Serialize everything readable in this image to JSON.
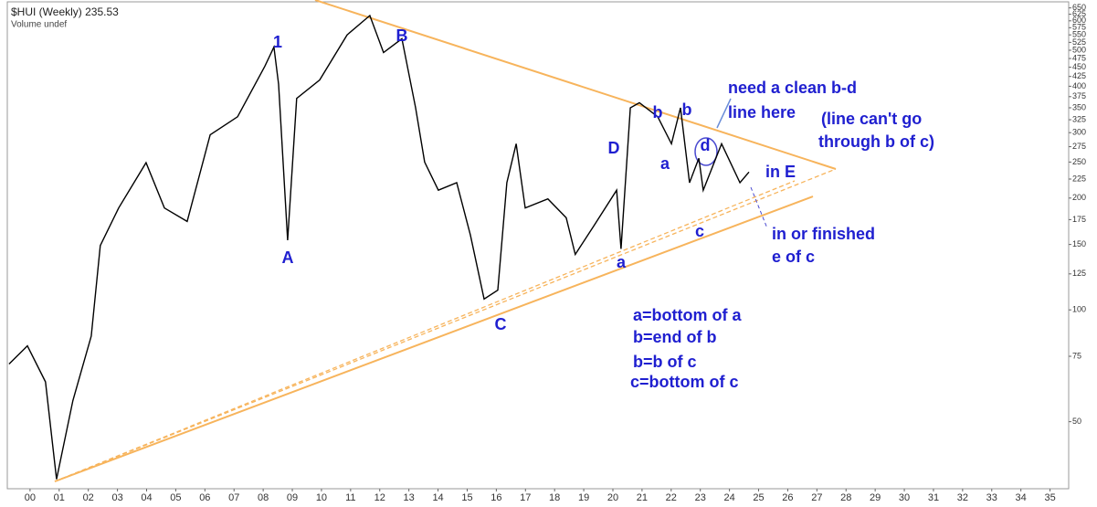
{
  "chart_data": {
    "type": "line",
    "title": "$HUI (Weekly) 235.53",
    "subtitle": "Volume undef",
    "log_y": true,
    "grid": false,
    "series": [
      {
        "name": "$HUI",
        "color": "#000000",
        "x": [
          1999.28,
          1999.91,
          2000.53,
          2000.91,
          2001.47,
          2002.1,
          2002.41,
          2003.04,
          2003.98,
          2004.61,
          2005.39,
          2006.18,
          2007.12,
          2008.06,
          2008.37,
          2008.53,
          2008.84,
          2009.15,
          2009.94,
          2010.88,
          2011.66,
          2012.13,
          2012.76,
          2013.23,
          2013.54,
          2014.01,
          2014.64,
          2015.11,
          2015.58,
          2016.05,
          2016.36,
          2016.68,
          2016.99,
          2017.77,
          2018.4,
          2018.71,
          2019.34,
          2020.13,
          2020.28,
          2020.6,
          2020.91,
          2021.54,
          2022.01,
          2022.32,
          2022.63,
          2022.95,
          2023.1,
          2023.73,
          2024.36,
          2024.67
        ],
        "values": [
          71.5,
          80,
          64,
          35,
          57,
          85,
          149,
          188,
          249,
          188,
          173,
          296,
          331,
          453,
          510,
          405,
          154,
          371,
          416,
          550,
          620,
          493,
          537,
          350,
          250,
          210,
          220,
          159,
          107,
          113,
          220,
          280,
          188,
          199,
          177,
          141,
          168,
          210,
          146,
          350,
          361,
          331,
          280,
          350,
          220,
          256,
          210,
          280,
          220,
          235
        ]
      }
    ],
    "xlim": [
      1999.22,
      2035.64
    ],
    "ylim": [
      33,
      675
    ],
    "xticks": [
      {
        "value": 2000,
        "label": "00"
      },
      {
        "value": 2001,
        "label": "01"
      },
      {
        "value": 2002,
        "label": "02"
      },
      {
        "value": 2003,
        "label": "03"
      },
      {
        "value": 2004,
        "label": "04"
      },
      {
        "value": 2005,
        "label": "05"
      },
      {
        "value": 2006,
        "label": "06"
      },
      {
        "value": 2007,
        "label": "07"
      },
      {
        "value": 2008,
        "label": "08"
      },
      {
        "value": 2009,
        "label": "09"
      },
      {
        "value": 2010,
        "label": "10"
      },
      {
        "value": 2011,
        "label": "11"
      },
      {
        "value": 2012,
        "label": "12"
      },
      {
        "value": 2013,
        "label": "13"
      },
      {
        "value": 2014,
        "label": "14"
      },
      {
        "value": 2015,
        "label": "15"
      },
      {
        "value": 2016,
        "label": "16"
      },
      {
        "value": 2017,
        "label": "17"
      },
      {
        "value": 2018,
        "label": "18"
      },
      {
        "value": 2019,
        "label": "19"
      },
      {
        "value": 2020,
        "label": "20"
      },
      {
        "value": 2021,
        "label": "21"
      },
      {
        "value": 2022,
        "label": "22"
      },
      {
        "value": 2023,
        "label": "23"
      },
      {
        "value": 2024,
        "label": "24"
      },
      {
        "value": 2025,
        "label": "25"
      },
      {
        "value": 2026,
        "label": "26"
      },
      {
        "value": 2027,
        "label": "27"
      },
      {
        "value": 2028,
        "label": "28"
      },
      {
        "value": 2029,
        "label": "29"
      },
      {
        "value": 2030,
        "label": "30"
      },
      {
        "value": 2031,
        "label": "31"
      },
      {
        "value": 2032,
        "label": "32"
      },
      {
        "value": 2033,
        "label": "33"
      },
      {
        "value": 2034,
        "label": "34"
      },
      {
        "value": 2035,
        "label": "35"
      }
    ],
    "yticks": [
      650,
      625,
      600,
      575,
      550,
      525,
      500,
      475,
      450,
      425,
      400,
      375,
      350,
      325,
      300,
      275,
      250,
      225,
      200,
      175,
      150,
      125,
      100,
      75,
      50
    ],
    "annotations": [
      "1",
      "A",
      "B",
      "C",
      "D",
      "a",
      "b",
      "b",
      "a",
      "c",
      "d",
      "in E",
      "need a clean b-d",
      "line here",
      "(line can't go",
      "through b of c)",
      "in or finished",
      "e of c",
      "a=bottom of a",
      "b=end of b",
      "b=b of c",
      "c=bottom of c"
    ]
  }
}
